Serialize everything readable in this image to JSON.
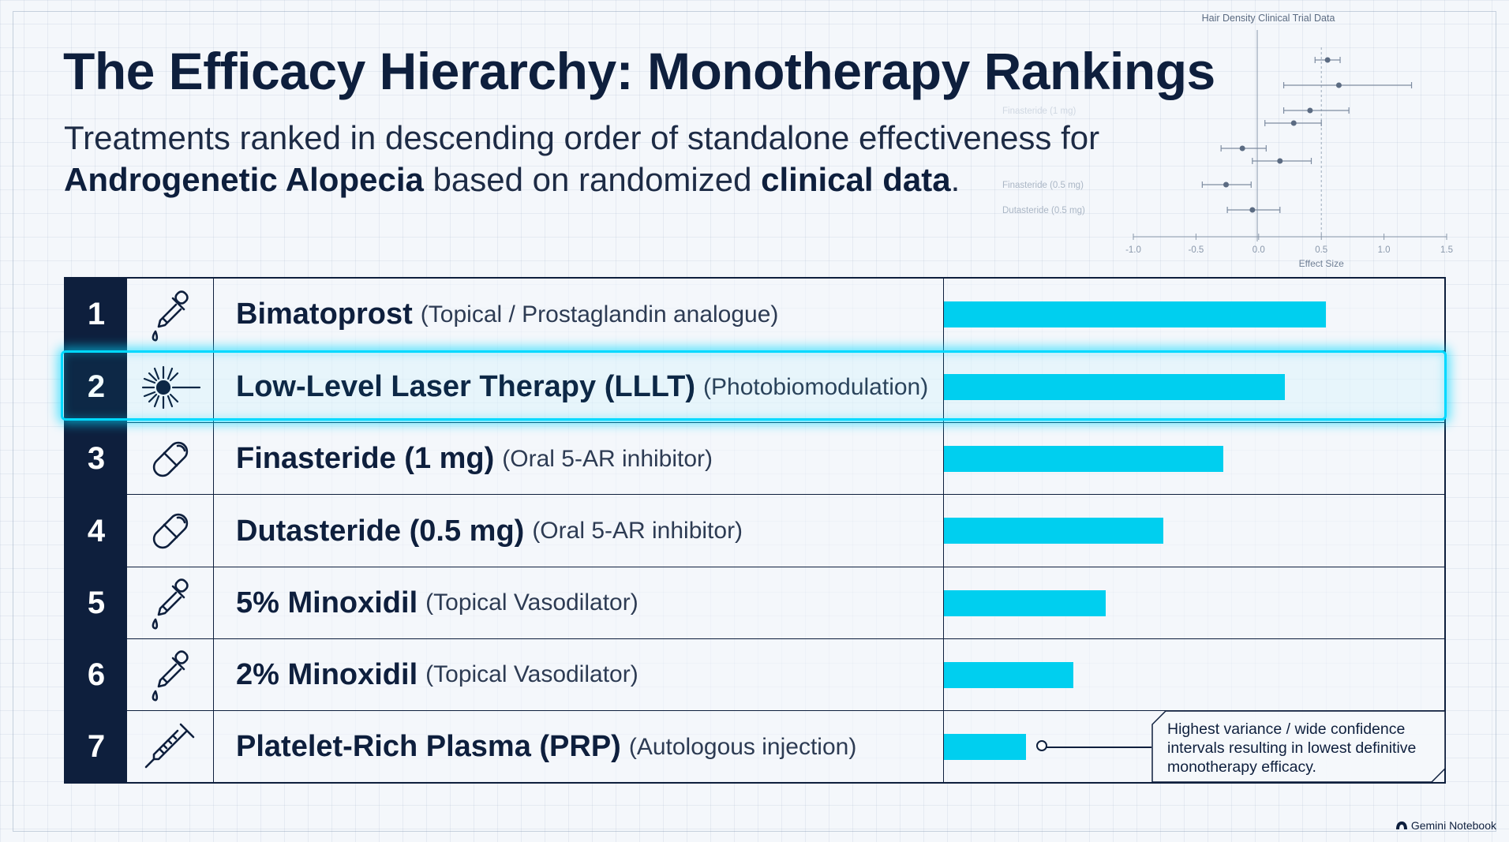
{
  "title": "The Efficacy Hierarchy: Monotherapy Rankings",
  "subtitle": {
    "line1": "Treatments ranked in descending order of standalone effectiveness for",
    "bold1": "Androgenetic Alopecia",
    "mid": " based on randomized ",
    "bold2": "clinical data",
    "end": "."
  },
  "chart_data": [
    {
      "type": "bar",
      "orientation": "horizontal",
      "categories": [
        "Bimatoprost",
        "Low-Level Laser Therapy (LLLT)",
        "Finasteride (1 mg)",
        "Dutasteride (0.5 mg)",
        "5% Minoxidil",
        "2% Minoxidil",
        "Platelet-Rich Plasma (PRP)"
      ],
      "values": [
        0.93,
        0.83,
        0.68,
        0.535,
        0.395,
        0.315,
        0.2
      ],
      "value_scale": "relative fraction of bar column width",
      "highlighted": "Low-Level Laser Therapy (LLLT)",
      "bar_color": "#00cfef"
    },
    {
      "type": "scatter",
      "subtype": "forest plot",
      "title": "Hair Density Clinical Trial Data",
      "xlabel": "Effect Size",
      "xlim": [
        -1.0,
        1.5
      ],
      "xticks": [
        "-1.0",
        "-0.5",
        "0.0",
        "0.5",
        "1.0",
        "1.5"
      ],
      "reference_line": 0.5,
      "row_labels": [
        "",
        "",
        "Finasteride (1 mg)",
        "",
        "",
        "",
        "Finasteride (0.5 mg)",
        "Dutasteride (0.5 mg)"
      ],
      "estimates": [
        0.55,
        0.64,
        0.41,
        0.28,
        -0.13,
        0.17,
        -0.26,
        -0.05
      ],
      "ci_low": [
        0.45,
        0.2,
        0.2,
        0.05,
        -0.3,
        -0.05,
        -0.45,
        -0.25
      ],
      "ci_high": [
        0.65,
        1.22,
        0.72,
        0.5,
        0.06,
        0.42,
        -0.06,
        0.17
      ]
    }
  ],
  "rows": [
    {
      "rank": "1",
      "name": "Bimatoprost",
      "desc": "(Topical / Prostaglandin analogue)",
      "icon": "dropper-icon"
    },
    {
      "rank": "2",
      "name": "Low-Level Laser Therapy (LLLT)",
      "desc": "(Photobiomodulation)",
      "icon": "laser-icon"
    },
    {
      "rank": "3",
      "name": "Finasteride (1 mg)",
      "desc": "(Oral 5-AR inhibitor)",
      "icon": "pill-icon"
    },
    {
      "rank": "4",
      "name": "Dutasteride (0.5 mg)",
      "desc": "(Oral 5-AR inhibitor)",
      "icon": "pill-icon"
    },
    {
      "rank": "5",
      "name": "5% Minoxidil",
      "desc": "(Topical Vasodilator)",
      "icon": "dropper-icon"
    },
    {
      "rank": "6",
      "name": "2% Minoxidil",
      "desc": "(Topical Vasodilator)",
      "icon": "dropper-icon"
    },
    {
      "rank": "7",
      "name": "Platelet-Rich Plasma (PRP)",
      "desc": "(Autologous injection)",
      "icon": "syringe-icon"
    }
  ],
  "callout": "Highest variance / wide confidence intervals resulting in lowest definitive monotherapy efficacy.",
  "brand": "Gemini Notebook",
  "colors": {
    "navy": "#0e1f3d",
    "accent": "#00cfef",
    "background": "#f4f7fb"
  }
}
